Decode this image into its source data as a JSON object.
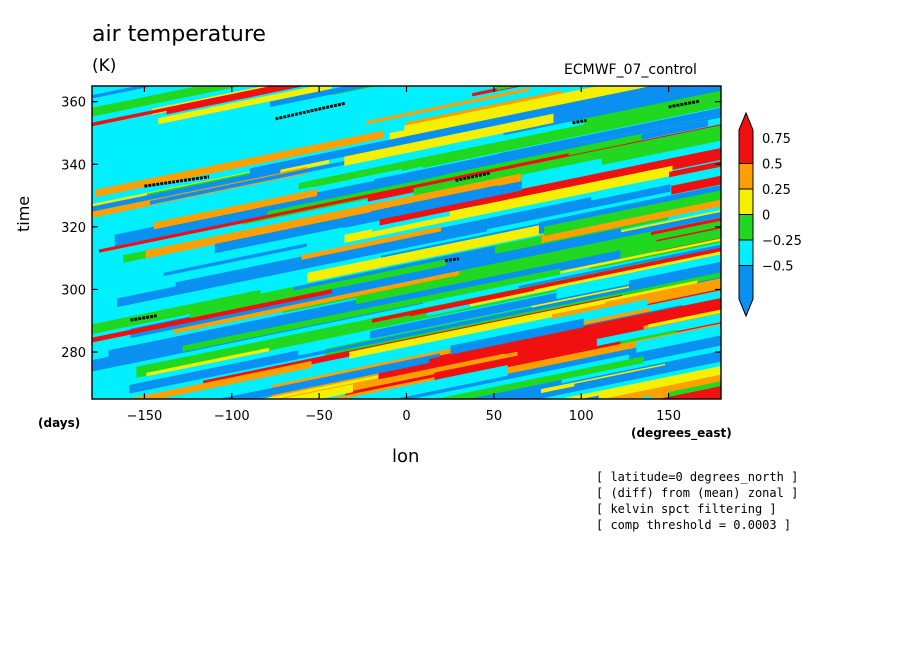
{
  "header": {
    "title": "air temperature",
    "units": "(K)",
    "subtitle": "ECMWF_07_control"
  },
  "axes": {
    "ylabel": "time",
    "ylabel_unit": "(days)",
    "xlabel": "lon",
    "xlabel_unit": "(degrees_east)"
  },
  "notes": [
    "[ latitude=0 degrees_north ]",
    "[ (diff) from (mean) zonal ]",
    "[ kelvin spct filtering ]",
    "[ comp threshold = 0.0003 ]"
  ],
  "colors": {
    "red": "#f01010",
    "orange": "#ff9f00",
    "yellow": "#f5f000",
    "green": "#20d820",
    "cyan": "#00f0ff",
    "blue": "#0a90f0"
  },
  "chart_data": {
    "type": "heatmap",
    "title": "air temperature",
    "xlabel": "lon",
    "ylabel": "time",
    "xlim": [
      -180,
      180
    ],
    "ylim": [
      265,
      365
    ],
    "x_ticks": [
      -150,
      -100,
      -50,
      0,
      50,
      100,
      150
    ],
    "y_ticks": [
      280,
      300,
      320,
      340,
      360
    ],
    "x_tick_labels": [
      "−150",
      "−100",
      "−50",
      "0",
      "50",
      "100",
      "150"
    ],
    "y_tick_labels": [
      "280",
      "300",
      "320",
      "340",
      "360"
    ],
    "colorbar": {
      "levels": [
        -0.5,
        -0.25,
        0,
        0.25,
        0.5,
        0.75
      ],
      "labels": [
        "−0.5",
        "−0.25",
        "0",
        "0.25",
        "0.5",
        "0.75"
      ],
      "colors": [
        "#0a90f0",
        "#00f0ff",
        "#20d820",
        "#f5f000",
        "#ff9f00",
        "#f01010"
      ]
    },
    "threshold_segments": [
      {
        "x": [
          -75,
          -35
        ],
        "y": [
          354.5,
          359.5
        ]
      },
      {
        "x": [
          -150,
          -113
        ],
        "y": [
          333,
          336
        ]
      },
      {
        "x": [
          28,
          48
        ],
        "y": [
          334.8,
          337.2
        ]
      },
      {
        "x": [
          95,
          103
        ],
        "y": [
          353.2,
          354
        ]
      },
      {
        "x": [
          150,
          168
        ],
        "y": [
          358.3,
          360.2
        ]
      },
      {
        "x": [
          22,
          30
        ],
        "y": [
          309.2,
          309.8
        ]
      },
      {
        "x": [
          -158,
          -143
        ],
        "y": [
          290.2,
          291.6
        ]
      }
    ],
    "pattern": "eastward-propagating diagonal bands of positive (red/orange) and negative (blue/cyan) anomalies"
  }
}
